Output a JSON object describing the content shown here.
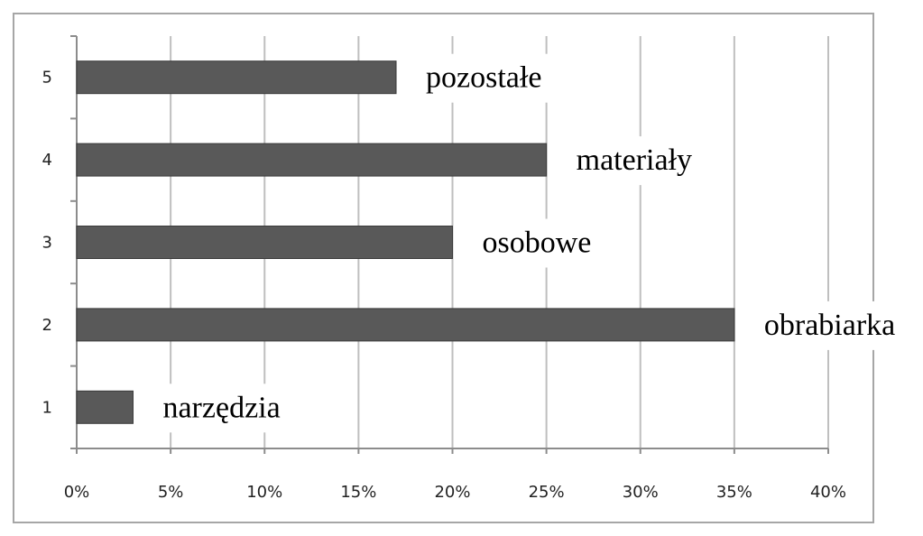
{
  "chart_data": {
    "type": "bar",
    "orientation": "horizontal",
    "categories": [
      "1",
      "2",
      "3",
      "4",
      "5"
    ],
    "values": [
      0.03,
      0.35,
      0.2,
      0.25,
      0.17
    ],
    "bar_labels": [
      "narzędzia",
      "obrabiarka",
      "osobowe",
      "materiały",
      "pozostałe"
    ],
    "x_ticks": [
      "0%",
      "5%",
      "10%",
      "15%",
      "20%",
      "25%",
      "30%",
      "35%",
      "40%"
    ],
    "xlim": [
      0,
      0.4
    ],
    "grid": "vertical",
    "legend": "none",
    "title": "",
    "xlabel": "",
    "ylabel": ""
  },
  "colors": {
    "bar": "#595959",
    "bar_edge": "#3a3a3a",
    "grid": "#bfbfbf",
    "axis": "#8c8c8c"
  }
}
